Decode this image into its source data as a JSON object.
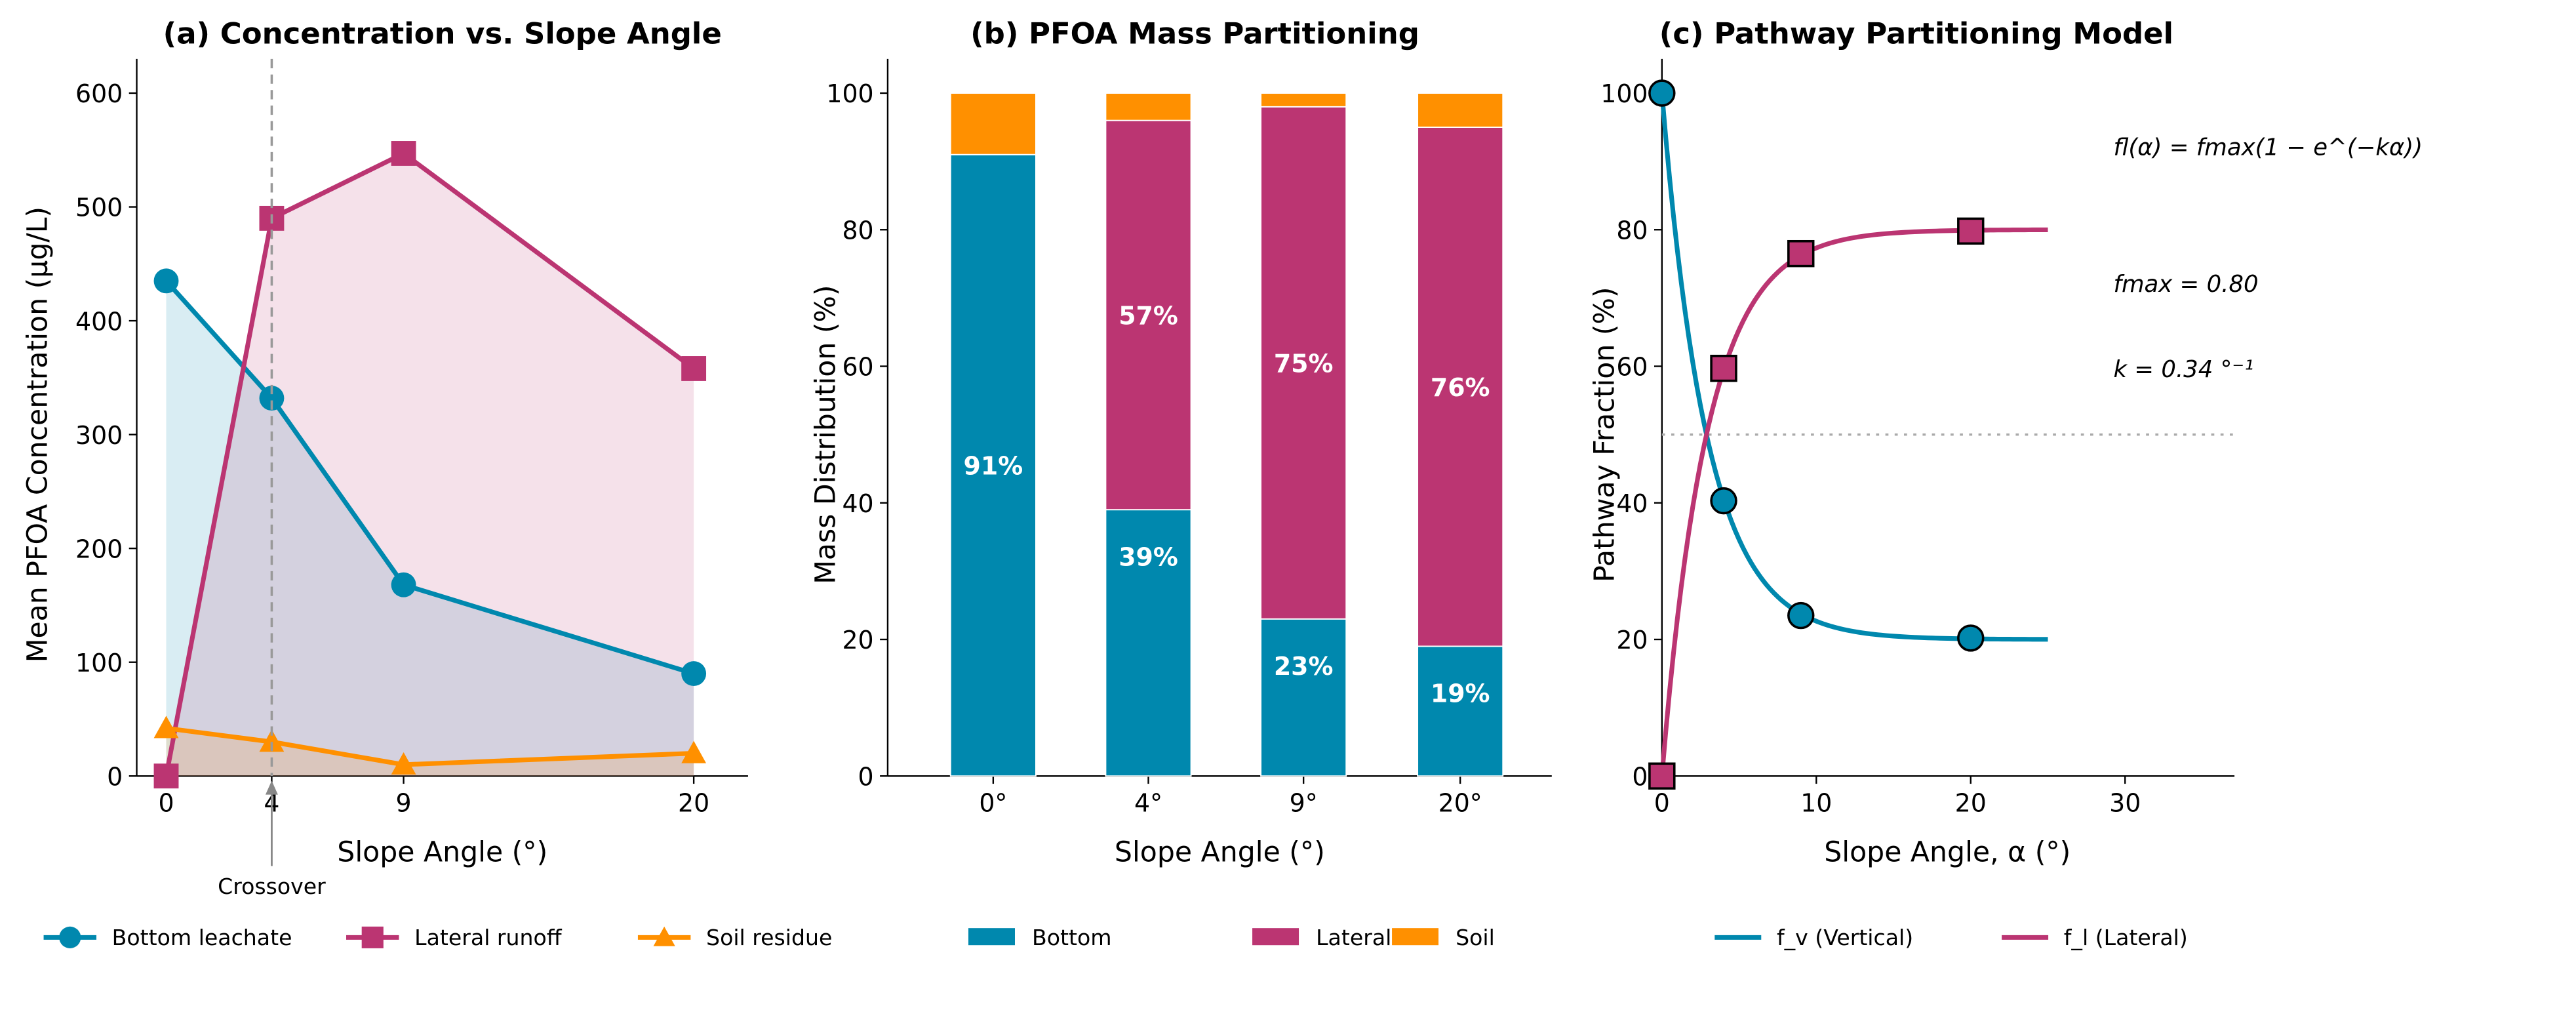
{
  "colors": {
    "bottom": "#0088AE",
    "lateral": "#BB3572",
    "soil": "#FF9000"
  },
  "chart_data": [
    {
      "type": "line",
      "title": "(a) Concentration vs. Slope Angle",
      "xlabel": "Slope Angle (°)",
      "ylabel": "Mean PFOA Concentration (µg/L)",
      "x": [
        0,
        4,
        9,
        20
      ],
      "xticks": [
        "0",
        "4",
        "9",
        "20"
      ],
      "ylim": [
        0,
        600
      ],
      "yticks": [
        "0",
        "100",
        "200",
        "300",
        "400",
        "500",
        "600"
      ],
      "series": [
        {
          "name": "Bottom leachate",
          "values": [
            435,
            332,
            168,
            90
          ],
          "marker": "circle"
        },
        {
          "name": "Lateral runoff",
          "values": [
            0,
            490,
            547,
            358
          ],
          "marker": "square"
        },
        {
          "name": "Soil residue",
          "values": [
            42,
            30,
            10,
            20
          ],
          "marker": "triangle"
        }
      ],
      "crossover": {
        "x": 4,
        "label": "Crossover"
      },
      "legend": "bottom"
    },
    {
      "type": "bar",
      "stacked": true,
      "title": "(b) PFOA Mass Partitioning",
      "xlabel": "Slope Angle (°)",
      "ylabel": "Mass Distribution (%)",
      "categories": [
        "0°",
        "4°",
        "9°",
        "20°"
      ],
      "ylim": [
        0,
        105
      ],
      "yticks": [
        "0",
        "20",
        "40",
        "60",
        "80",
        "100"
      ],
      "series": [
        {
          "name": "Bottom",
          "values": [
            91,
            39,
            23,
            19
          ],
          "labels": [
            "91%",
            "39%",
            "23%",
            "19%"
          ]
        },
        {
          "name": "Lateral",
          "values": [
            0,
            57,
            75,
            76
          ],
          "labels": [
            "",
            "57%",
            "75%",
            "76%"
          ]
        },
        {
          "name": "Soil",
          "values": [
            9,
            4,
            2,
            5
          ]
        }
      ],
      "legend": "bottom"
    },
    {
      "type": "line",
      "title": "(c) Pathway Partitioning Model",
      "xlabel": "Slope Angle, α (°)",
      "ylabel": "Pathway Fraction (%)",
      "xlim": [
        0,
        37
      ],
      "xticks": [
        "0",
        "10",
        "20",
        "30"
      ],
      "ylim": [
        0,
        105
      ],
      "yticks": [
        "0",
        "20",
        "40",
        "60",
        "80",
        "100"
      ],
      "points_x": [
        0,
        4,
        9,
        20
      ],
      "series": [
        {
          "name": "f_v (Vertical)",
          "points": [
            100,
            40.3,
            23.5,
            20.2
          ],
          "model": "100 - 80(1-exp(-0.34x))"
        },
        {
          "name": "f_l (Lateral)",
          "points": [
            0,
            59.7,
            76.5,
            79.8
          ],
          "model": "80(1-exp(-0.34x))"
        }
      ],
      "model_range": [
        0,
        25
      ],
      "fmax": 0.8,
      "k": 0.34,
      "reference_line": 50,
      "annotations": [
        "fl(α) = fmax(1 − e^(−kα))",
        "fmax = 0.80",
        "k = 0.34 °⁻¹"
      ],
      "legend": "bottom"
    }
  ]
}
